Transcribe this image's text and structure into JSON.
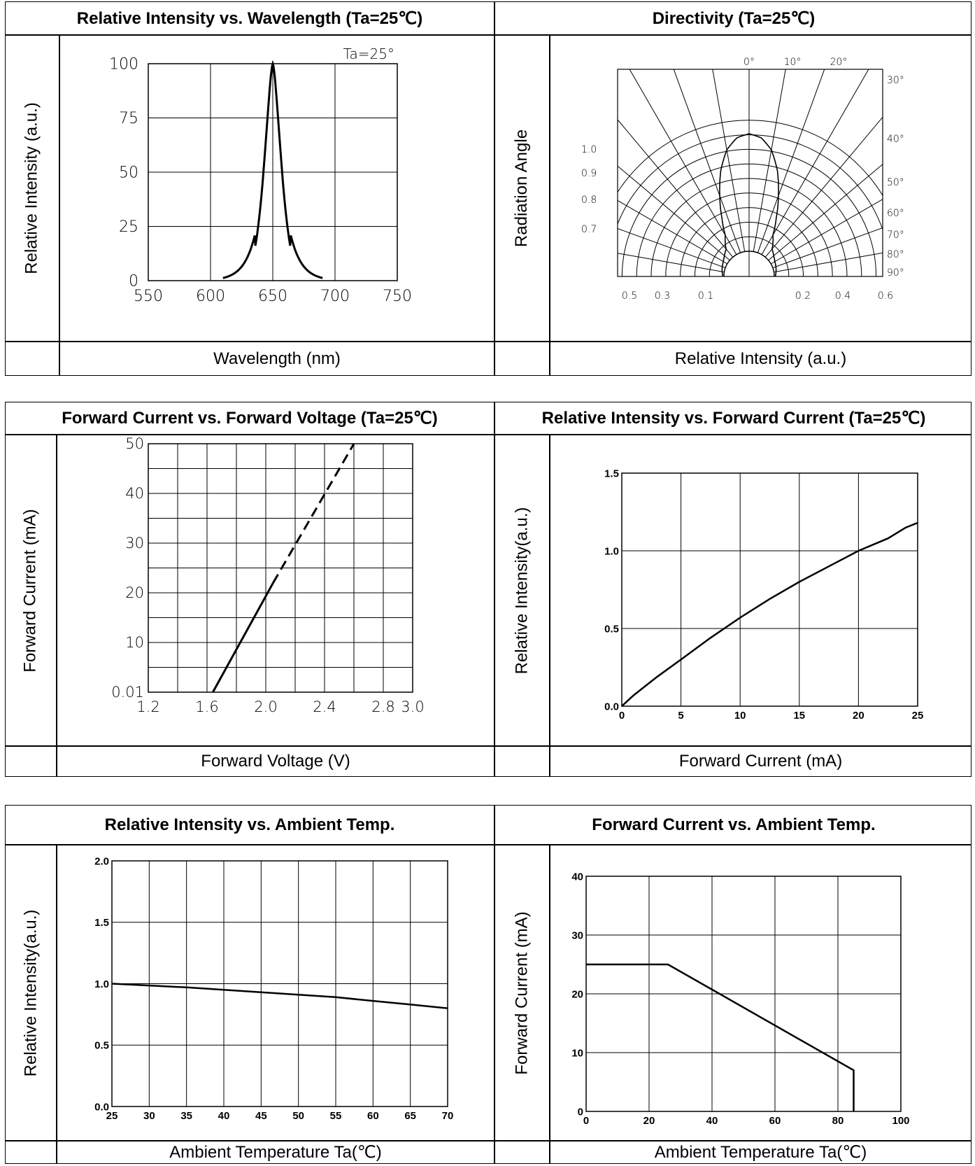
{
  "panels": [
    {
      "title": "Relative Intensity vs. Wavelength (Ta=25℃)",
      "ylabel": "Relative Intensity (a.u.)",
      "xlabel": "Wavelength (nm)"
    },
    {
      "title": "Directivity (Ta=25℃)",
      "ylabel": "Radiation Angle",
      "xlabel": "Relative Intensity (a.u.)"
    },
    {
      "title": "Forward Current vs. Forward Voltage (Ta=25℃)",
      "ylabel": "Forward Current (mA)",
      "xlabel": "Forward Voltage (V)"
    },
    {
      "title": "Relative Intensity vs. Forward Current (Ta=25℃)",
      "ylabel": "Relative Intensity(a.u.)",
      "xlabel": "Forward Current (mA)"
    },
    {
      "title": "Relative Intensity vs. Ambient Temp.",
      "ylabel": "Relative Intensity(a.u.)",
      "xlabel": "Ambient Temperature Ta(℃)"
    },
    {
      "title": "Forward Current vs. Ambient Temp.",
      "ylabel": "Forward Current (mA)",
      "xlabel": "Ambient Temperature Ta(℃)"
    }
  ],
  "chart_data": [
    {
      "type": "line",
      "annotation": "Ta=25°",
      "xlim": [
        550,
        750
      ],
      "ylim": [
        0,
        100
      ],
      "xticks": [
        "550",
        "600",
        "650",
        "700",
        "750"
      ],
      "yticks": [
        "0",
        "25",
        "50",
        "75",
        "100"
      ],
      "grid": true,
      "x": [
        610,
        620,
        630,
        635,
        638,
        641,
        644,
        647,
        650,
        653,
        656,
        659,
        662,
        665,
        670,
        680,
        690
      ],
      "values": [
        0.5,
        4,
        12,
        22,
        36,
        60,
        82,
        96,
        100,
        96,
        82,
        60,
        36,
        22,
        12,
        4,
        0.5
      ]
    },
    {
      "type": "polar",
      "angle_ticks": [
        "0°",
        "10°",
        "20°",
        "30°",
        "40°",
        "50°",
        "60°",
        "70°",
        "80°",
        "90°"
      ],
      "radius_ticks_left": [
        "1.0",
        "0.9",
        "0.8",
        "0.7"
      ],
      "radius_ticks_bottom": [
        "0.5",
        "0.3",
        "0.1",
        "0.2",
        "0.4",
        "0.6"
      ],
      "angle_deg": [
        0,
        5,
        10,
        15,
        20,
        25,
        30,
        40,
        50,
        60,
        70,
        80,
        90
      ],
      "values": [
        1.0,
        0.97,
        0.88,
        0.72,
        0.52,
        0.34,
        0.2,
        0.1,
        0.07,
        0.05,
        0.04,
        0.03,
        0.02
      ]
    },
    {
      "type": "line",
      "xlim": [
        1.2,
        3.0
      ],
      "ylim": [
        0,
        50
      ],
      "xticks": [
        "1.2",
        "1.6",
        "2.0",
        "2.4",
        "2.8",
        "3.0"
      ],
      "yticks": [
        "0.01",
        "10",
        "20",
        "30",
        "40",
        "50"
      ],
      "grid": true,
      "series": [
        {
          "style": "solid",
          "x": [
            1.64,
            2.05
          ],
          "values": [
            0.01,
            22
          ]
        },
        {
          "style": "dashed",
          "x": [
            2.05,
            2.6
          ],
          "values": [
            22,
            50
          ]
        }
      ]
    },
    {
      "type": "line",
      "xlim": [
        0,
        25
      ],
      "ylim": [
        0,
        1.5
      ],
      "xticks": [
        "0",
        "5",
        "10",
        "15",
        "20",
        "25"
      ],
      "yticks": [
        "0.0",
        "0.5",
        "1.0",
        "1.5"
      ],
      "grid": true,
      "x": [
        0,
        1,
        2,
        3,
        5,
        7.5,
        10,
        12.5,
        15,
        17.5,
        20,
        22.5,
        24,
        25
      ],
      "values": [
        0,
        0.07,
        0.13,
        0.19,
        0.3,
        0.44,
        0.57,
        0.69,
        0.8,
        0.9,
        1.0,
        1.08,
        1.15,
        1.18
      ]
    },
    {
      "type": "line",
      "xlim": [
        25,
        70
      ],
      "ylim": [
        0,
        2
      ],
      "xticks": [
        "25",
        "30",
        "35",
        "40",
        "45",
        "50",
        "55",
        "60",
        "65",
        "70"
      ],
      "yticks": [
        "0.0",
        "0.5",
        "1.0",
        "1.5",
        "2.0"
      ],
      "grid": true,
      "x": [
        25,
        30,
        35,
        40,
        45,
        50,
        55,
        60,
        65,
        70
      ],
      "values": [
        1.0,
        0.985,
        0.97,
        0.95,
        0.93,
        0.91,
        0.89,
        0.86,
        0.83,
        0.8
      ]
    },
    {
      "type": "line",
      "xlim": [
        0,
        100
      ],
      "ylim": [
        0,
        40
      ],
      "xticks": [
        "0",
        "20",
        "40",
        "60",
        "80",
        "100"
      ],
      "yticks": [
        "0",
        "10",
        "20",
        "30",
        "40"
      ],
      "grid": true,
      "x": [
        0,
        26,
        85,
        85
      ],
      "values": [
        25,
        25,
        7,
        0
      ]
    }
  ]
}
